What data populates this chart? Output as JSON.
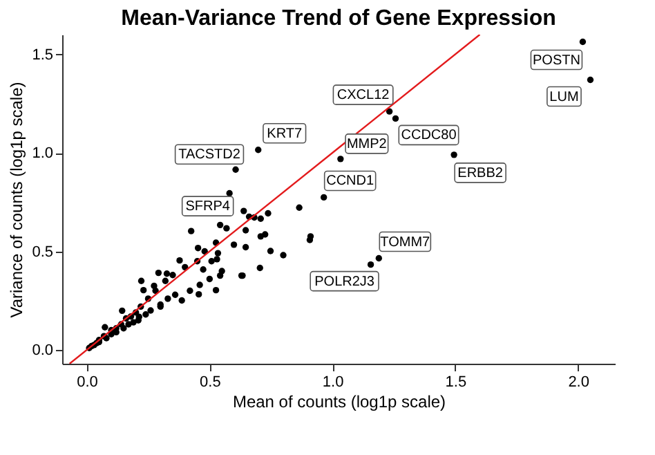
{
  "chart_data": {
    "type": "scatter",
    "title": "Mean-Variance Trend of Gene Expression",
    "xlabel": "Mean of counts (log1p scale)",
    "ylabel": "Variance of counts (log1p scale)",
    "xlim": [
      -0.1,
      2.15
    ],
    "ylim": [
      -0.07,
      1.6
    ],
    "xticks": [
      {
        "value": 0,
        "label": "0.0"
      },
      {
        "value": 0.5,
        "label": "0.5"
      },
      {
        "value": 1,
        "label": "1.0"
      },
      {
        "value": 1.5,
        "label": "1.5"
      },
      {
        "value": 2,
        "label": "2.0"
      }
    ],
    "yticks": [
      {
        "value": 0,
        "label": "0.0"
      },
      {
        "value": 0.5,
        "label": "0.5"
      },
      {
        "value": 1,
        "label": "1.0"
      },
      {
        "value": 1.5,
        "label": "1.5"
      }
    ],
    "grid": false,
    "marker": "circle",
    "series": [
      {
        "color": "#000000",
        "x": [
          2.019,
          2.05,
          1.232,
          1.257,
          1.495,
          1.033,
          0.965,
          1.189,
          1.156,
          0.698,
          0.606,
          0.425,
          0.581,
          0.865,
          0.911,
          0.908,
          0.639,
          0.661,
          0.682,
          0.708,
          0.738,
          0.543,
          0.569,
          0.647,
          0.708,
          0.726,
          0.748,
          0.8,
          0.705,
          0.634,
          0.599,
          0.647,
          0.526,
          0.453,
          0.378,
          0.292,
          0.222,
          0.231,
          0.274,
          0.326,
          0.144,
          0.074,
          0.387,
          0.456,
          0.526,
          0.543,
          0.474,
          0.508,
          0.63,
          0.534,
          0.3,
          0.213,
          0.01,
          0.02,
          0.03,
          0.04,
          0.05,
          0.05,
          0.07,
          0.08,
          0.1,
          0.1,
          0.12,
          0.12,
          0.14,
          0.15,
          0.16,
          0.17,
          0.18,
          0.19,
          0.2,
          0.21,
          0.22,
          0.24,
          0.25,
          0.26,
          0.28,
          0.3,
          0.32,
          0.33,
          0.35,
          0.36,
          0.4,
          0.42,
          0.45,
          0.46,
          0.48,
          0.5,
          0.53,
          0.55
        ],
        "values": [
          1.563,
          1.37,
          1.21,
          1.174,
          0.99,
          0.969,
          0.774,
          0.465,
          0.433,
          1.015,
          0.915,
          0.603,
          0.795,
          0.722,
          0.576,
          0.558,
          0.705,
          0.676,
          0.672,
          0.666,
          0.693,
          0.634,
          0.617,
          0.607,
          0.576,
          0.586,
          0.502,
          0.481,
          0.416,
          0.377,
          0.534,
          0.521,
          0.544,
          0.517,
          0.454,
          0.391,
          0.35,
          0.303,
          0.325,
          0.387,
          0.199,
          0.115,
          0.251,
          0.282,
          0.303,
          0.377,
          0.408,
          0.45,
          0.377,
          0.491,
          0.22,
          0.168,
          0.01,
          0.02,
          0.025,
          0.035,
          0.05,
          0.04,
          0.07,
          0.06,
          0.1,
          0.08,
          0.11,
          0.09,
          0.13,
          0.11,
          0.16,
          0.13,
          0.17,
          0.14,
          0.19,
          0.15,
          0.22,
          0.18,
          0.26,
          0.2,
          0.3,
          0.23,
          0.35,
          0.26,
          0.38,
          0.28,
          0.42,
          0.3,
          0.45,
          0.33,
          0.5,
          0.36,
          0.46,
          0.4
        ]
      },
      {
        "type": "line",
        "marker": "none",
        "color": "#e31a1c",
        "x": [
          -0.07,
          1.6
        ],
        "values": [
          -0.07,
          1.6
        ]
      }
    ],
    "annotations": [
      {
        "text": "POSTN",
        "x": 2.019,
        "y": 1.563
      },
      {
        "text": "LUM",
        "x": 2.05,
        "y": 1.37
      },
      {
        "text": "CXCL12",
        "x": 1.232,
        "y": 1.21
      },
      {
        "text": "CCDC80",
        "x": 1.257,
        "y": 1.174
      },
      {
        "text": "ERBB2",
        "x": 1.495,
        "y": 0.99
      },
      {
        "text": "MMP2",
        "x": 1.033,
        "y": 0.969
      },
      {
        "text": "CCND1",
        "x": 0.965,
        "y": 0.774
      },
      {
        "text": "TOMM7",
        "x": 1.189,
        "y": 0.465
      },
      {
        "text": "POLR2J3",
        "x": 1.156,
        "y": 0.433
      },
      {
        "text": "KRT7",
        "x": 0.698,
        "y": 1.015
      },
      {
        "text": "TACSTD2",
        "x": 0.606,
        "y": 0.915
      },
      {
        "text": "SFRP4",
        "x": 0.425,
        "y": 0.603
      }
    ]
  }
}
